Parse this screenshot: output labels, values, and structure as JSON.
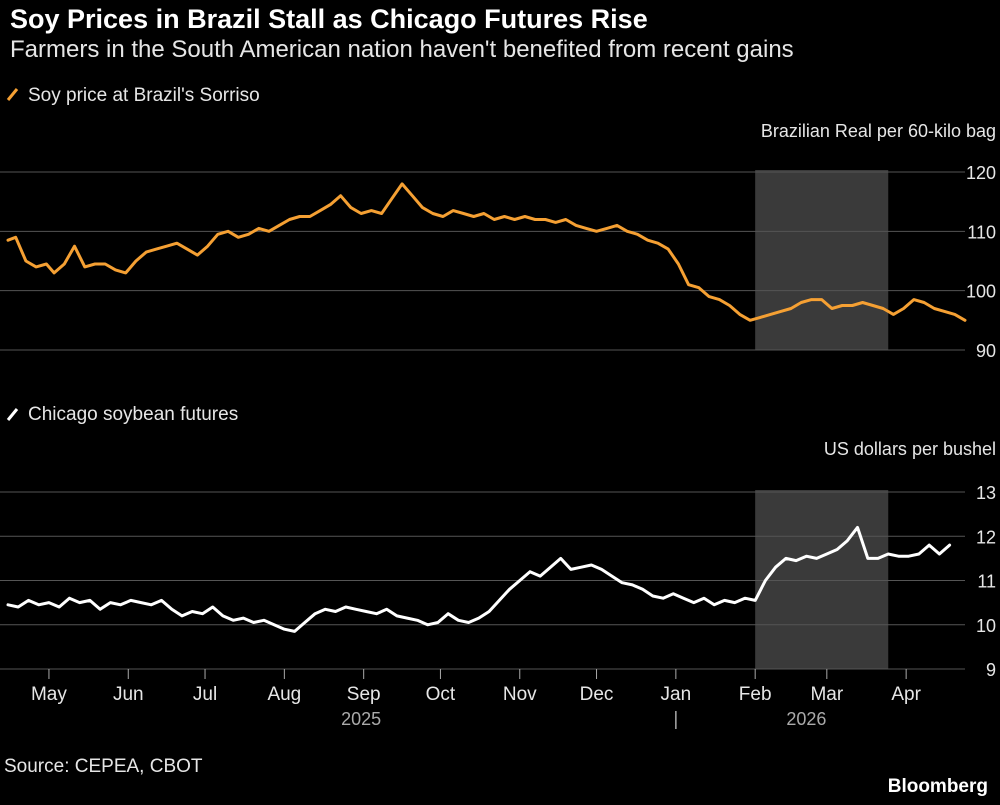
{
  "header": {
    "title": "Soy Prices in Brazil Stall as Chicago Futures Rise",
    "subtitle": "Farmers in the South American nation haven't benefited from recent gains"
  },
  "footer": {
    "source": "Source: CEPEA, CBOT",
    "brand": "Bloomberg"
  },
  "colors": {
    "background": "#000000",
    "top_series": "#f5a033",
    "bottom_series": "#ffffff",
    "gridline": "#555555",
    "highlight": "#3a3a3a"
  },
  "chart_data": [
    {
      "type": "line",
      "title": "",
      "legend": "Soy price at Brazil's Sorriso",
      "legend_position": "top-left",
      "ylabel": "Brazilian Real per 60-kilo bag",
      "ylim": [
        90,
        120
      ],
      "yticks": [
        90,
        100,
        110,
        120
      ],
      "y_axis_side": "right",
      "grid": true,
      "x_range": [
        "2025-04-15",
        "2026-04-24"
      ],
      "highlight_range": [
        "2026-02-01",
        "2026-03-25"
      ],
      "series": [
        {
          "name": "Soy price at Brazil's Sorriso",
          "x": [
            "2025-04-15",
            "2025-04-18",
            "2025-04-22",
            "2025-04-26",
            "2025-04-30",
            "2025-05-03",
            "2025-05-07",
            "2025-05-11",
            "2025-05-15",
            "2025-05-19",
            "2025-05-23",
            "2025-05-27",
            "2025-05-31",
            "2025-06-04",
            "2025-06-08",
            "2025-06-12",
            "2025-06-16",
            "2025-06-20",
            "2025-06-24",
            "2025-06-28",
            "2025-07-02",
            "2025-07-06",
            "2025-07-10",
            "2025-07-14",
            "2025-07-18",
            "2025-07-22",
            "2025-07-26",
            "2025-07-30",
            "2025-08-03",
            "2025-08-07",
            "2025-08-11",
            "2025-08-15",
            "2025-08-19",
            "2025-08-23",
            "2025-08-27",
            "2025-08-31",
            "2025-09-04",
            "2025-09-08",
            "2025-09-12",
            "2025-09-16",
            "2025-09-20",
            "2025-09-24",
            "2025-09-28",
            "2025-10-02",
            "2025-10-06",
            "2025-10-10",
            "2025-10-14",
            "2025-10-18",
            "2025-10-22",
            "2025-10-26",
            "2025-10-30",
            "2025-11-03",
            "2025-11-07",
            "2025-11-11",
            "2025-11-15",
            "2025-11-19",
            "2025-11-23",
            "2025-11-27",
            "2025-12-01",
            "2025-12-05",
            "2025-12-09",
            "2025-12-13",
            "2025-12-17",
            "2025-12-21",
            "2025-12-25",
            "2025-12-29",
            "2026-01-02",
            "2026-01-06",
            "2026-01-10",
            "2026-01-14",
            "2026-01-18",
            "2026-01-22",
            "2026-01-26",
            "2026-01-30",
            "2026-02-03",
            "2026-02-07",
            "2026-02-11",
            "2026-02-15",
            "2026-02-19",
            "2026-02-23",
            "2026-02-27",
            "2026-03-03",
            "2026-03-07",
            "2026-03-11",
            "2026-03-15",
            "2026-03-19",
            "2026-03-23",
            "2026-03-27",
            "2026-03-31",
            "2026-04-04",
            "2026-04-08",
            "2026-04-12",
            "2026-04-16",
            "2026-04-20",
            "2026-04-24"
          ],
          "y": [
            108.5,
            109,
            105,
            104,
            104.5,
            103,
            104.5,
            107.5,
            104,
            104.5,
            104.5,
            103.5,
            103,
            105,
            106.5,
            107,
            107.5,
            108,
            107,
            106,
            107.5,
            109.5,
            110,
            109,
            109.5,
            110.5,
            110,
            111,
            112,
            112.5,
            112.5,
            113.5,
            114.5,
            116,
            114,
            113,
            113.5,
            113,
            115.5,
            118,
            116,
            114,
            113,
            112.5,
            113.5,
            113,
            112.5,
            113,
            112,
            112.5,
            112,
            112.5,
            112,
            112,
            111.5,
            112,
            111,
            110.5,
            110,
            110.5,
            111,
            110,
            109.5,
            108.5,
            108,
            107,
            104.5,
            101,
            100.5,
            99,
            98.5,
            97.5,
            96,
            95,
            95.5,
            96,
            96.5,
            97,
            98,
            98.5,
            98.5,
            97,
            97.5,
            97.5,
            98,
            97.5,
            97,
            96,
            97,
            98.5,
            98,
            97,
            96.5,
            96,
            95
          ]
        }
      ]
    },
    {
      "type": "line",
      "title": "",
      "legend": "Chicago soybean futures",
      "legend_position": "top-left",
      "ylabel": "US dollars per bushel",
      "ylim": [
        9,
        13
      ],
      "yticks": [
        9,
        10,
        11,
        12,
        13
      ],
      "y_axis_side": "right",
      "grid": true,
      "x_range": [
        "2025-04-15",
        "2026-04-24"
      ],
      "highlight_range": [
        "2026-02-01",
        "2026-03-25"
      ],
      "x_tick_labels": [
        "May",
        "Jun",
        "Jul",
        "Aug",
        "Sep",
        "Oct",
        "Nov",
        "Dec",
        "Jan",
        "Feb",
        "Mar",
        "Apr"
      ],
      "x_tick_dates": [
        "2025-05-01",
        "2025-06-01",
        "2025-07-01",
        "2025-08-01",
        "2025-09-01",
        "2025-10-01",
        "2025-11-01",
        "2025-12-01",
        "2026-01-01",
        "2026-02-01",
        "2026-03-01",
        "2026-04-01"
      ],
      "year_labels": [
        {
          "label": "2025",
          "date": "2025-08-31"
        },
        {
          "label": "2026",
          "date": "2026-02-21"
        }
      ],
      "year_divider": "2026-01-01",
      "series": [
        {
          "name": "Chicago soybean futures",
          "x": [
            "2025-04-15",
            "2025-04-19",
            "2025-04-23",
            "2025-04-27",
            "2025-05-01",
            "2025-05-05",
            "2025-05-09",
            "2025-05-13",
            "2025-05-17",
            "2025-05-21",
            "2025-05-25",
            "2025-05-29",
            "2025-06-02",
            "2025-06-06",
            "2025-06-10",
            "2025-06-14",
            "2025-06-18",
            "2025-06-22",
            "2025-06-26",
            "2025-06-30",
            "2025-07-04",
            "2025-07-08",
            "2025-07-12",
            "2025-07-16",
            "2025-07-20",
            "2025-07-24",
            "2025-07-28",
            "2025-08-01",
            "2025-08-05",
            "2025-08-09",
            "2025-08-13",
            "2025-08-17",
            "2025-08-21",
            "2025-08-25",
            "2025-08-29",
            "2025-09-02",
            "2025-09-06",
            "2025-09-10",
            "2025-09-14",
            "2025-09-18",
            "2025-09-22",
            "2025-09-26",
            "2025-09-30",
            "2025-10-04",
            "2025-10-08",
            "2025-10-12",
            "2025-10-16",
            "2025-10-20",
            "2025-10-24",
            "2025-10-28",
            "2025-11-01",
            "2025-11-05",
            "2025-11-09",
            "2025-11-13",
            "2025-11-17",
            "2025-11-21",
            "2025-11-25",
            "2025-11-29",
            "2025-12-03",
            "2025-12-07",
            "2025-12-11",
            "2025-12-15",
            "2025-12-19",
            "2025-12-23",
            "2025-12-27",
            "2025-12-31",
            "2026-01-04",
            "2026-01-08",
            "2026-01-12",
            "2026-01-16",
            "2026-01-20",
            "2026-01-24",
            "2026-01-28",
            "2026-02-01",
            "2026-02-05",
            "2026-02-09",
            "2026-02-13",
            "2026-02-17",
            "2026-02-21",
            "2026-02-25",
            "2026-03-01",
            "2026-03-05",
            "2026-03-09",
            "2026-03-13",
            "2026-03-17",
            "2026-03-21",
            "2026-03-25",
            "2026-03-29",
            "2026-04-02",
            "2026-04-06",
            "2026-04-10",
            "2026-04-14",
            "2026-04-18"
          ],
          "y": [
            10.45,
            10.4,
            10.55,
            10.45,
            10.5,
            10.4,
            10.6,
            10.5,
            10.55,
            10.35,
            10.5,
            10.45,
            10.55,
            10.5,
            10.45,
            10.55,
            10.35,
            10.2,
            10.3,
            10.25,
            10.4,
            10.2,
            10.1,
            10.15,
            10.05,
            10.1,
            10.0,
            9.9,
            9.85,
            10.05,
            10.25,
            10.35,
            10.3,
            10.4,
            10.35,
            10.3,
            10.25,
            10.35,
            10.2,
            10.15,
            10.1,
            10.0,
            10.05,
            10.25,
            10.1,
            10.05,
            10.15,
            10.3,
            10.55,
            10.8,
            11.0,
            11.2,
            11.1,
            11.3,
            11.5,
            11.25,
            11.3,
            11.35,
            11.25,
            11.1,
            10.95,
            10.9,
            10.8,
            10.65,
            10.6,
            10.7,
            10.6,
            10.5,
            10.6,
            10.45,
            10.55,
            10.5,
            10.6,
            10.55,
            11.0,
            11.3,
            11.5,
            11.45,
            11.55,
            11.5,
            11.6,
            11.7,
            11.9,
            12.2,
            11.5,
            11.5,
            11.6,
            11.55,
            11.55,
            11.6,
            11.8,
            11.6,
            11.8
          ]
        }
      ]
    }
  ]
}
